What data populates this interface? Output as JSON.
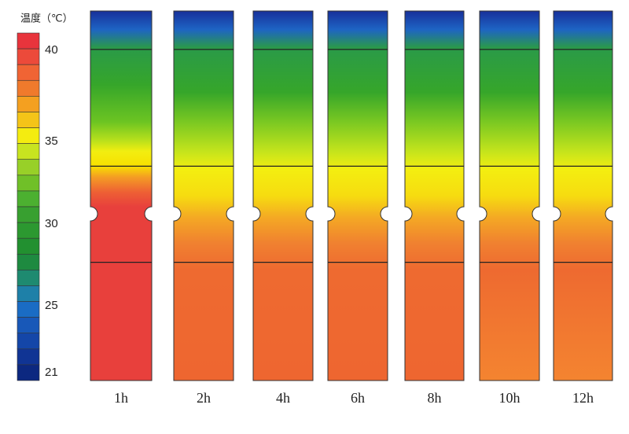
{
  "legend": {
    "title": "温度（℃）",
    "ticks": [
      "40",
      "35",
      "30",
      "25",
      "21"
    ]
  },
  "panels": [
    {
      "label": "1h"
    },
    {
      "label": "2h"
    },
    {
      "label": "4h"
    },
    {
      "label": "6h"
    },
    {
      "label": "8h"
    },
    {
      "label": "10h"
    },
    {
      "label": "12h"
    }
  ]
}
